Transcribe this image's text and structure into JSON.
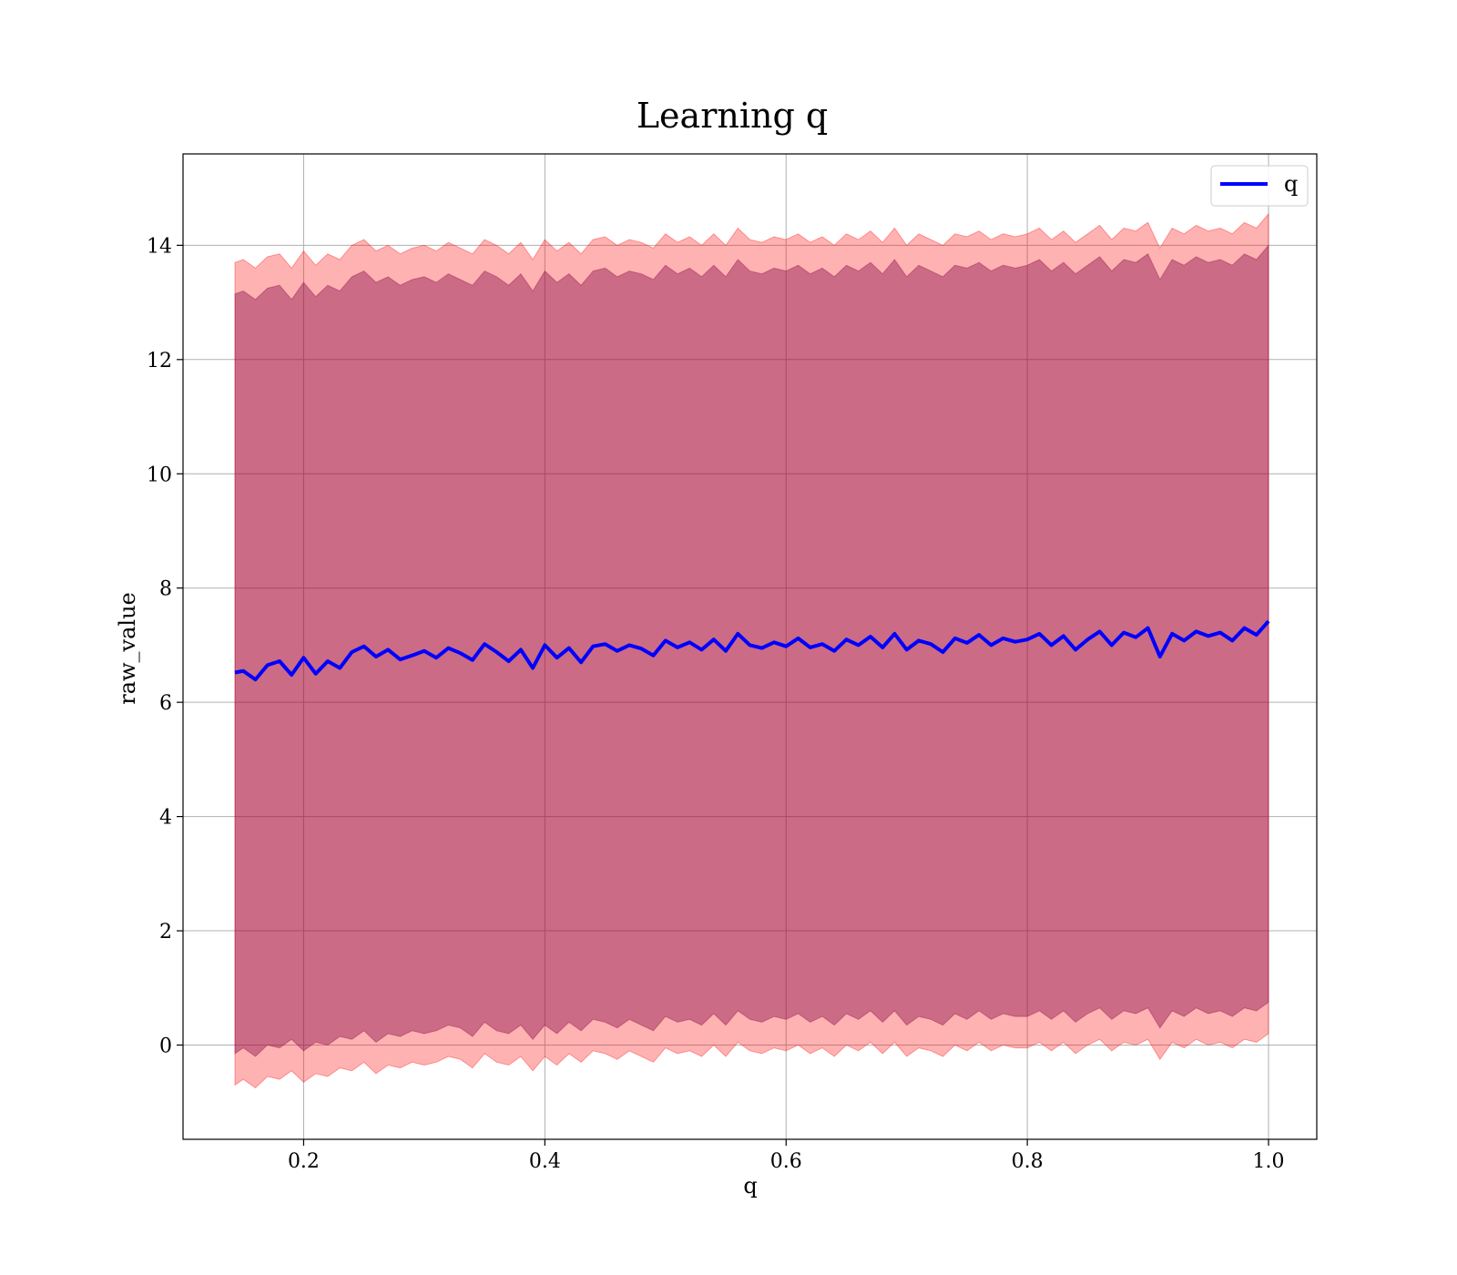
{
  "chart_data": {
    "type": "line",
    "title": "Learning q",
    "xlabel": "q",
    "ylabel": "raw_value",
    "xlim": [
      0.1,
      1.04
    ],
    "ylim": [
      -1.65,
      15.6
    ],
    "xticks": [
      0.2,
      0.4,
      0.6,
      0.8,
      1.0
    ],
    "xtick_labels": [
      "0.2",
      "0.4",
      "0.6",
      "0.8",
      "1.0"
    ],
    "yticks": [
      0,
      2,
      4,
      6,
      8,
      10,
      12,
      14
    ],
    "ytick_labels": [
      "0",
      "2",
      "4",
      "6",
      "8",
      "10",
      "12",
      "14"
    ],
    "grid": true,
    "legend": {
      "position": "top-right",
      "entries": [
        "q"
      ]
    },
    "series": [
      {
        "name": "q",
        "color": "#0000ff",
        "x": [
          0.143,
          0.15,
          0.16,
          0.17,
          0.18,
          0.19,
          0.2,
          0.21,
          0.22,
          0.23,
          0.24,
          0.25,
          0.26,
          0.27,
          0.28,
          0.29,
          0.3,
          0.31,
          0.32,
          0.33,
          0.34,
          0.35,
          0.36,
          0.37,
          0.38,
          0.39,
          0.4,
          0.41,
          0.42,
          0.43,
          0.44,
          0.45,
          0.46,
          0.47,
          0.48,
          0.49,
          0.5,
          0.51,
          0.52,
          0.53,
          0.54,
          0.55,
          0.56,
          0.57,
          0.58,
          0.59,
          0.6,
          0.61,
          0.62,
          0.63,
          0.64,
          0.65,
          0.66,
          0.67,
          0.68,
          0.69,
          0.7,
          0.71,
          0.72,
          0.73,
          0.74,
          0.75,
          0.76,
          0.77,
          0.78,
          0.79,
          0.8,
          0.81,
          0.82,
          0.83,
          0.84,
          0.85,
          0.86,
          0.87,
          0.88,
          0.89,
          0.9,
          0.91,
          0.92,
          0.93,
          0.94,
          0.95,
          0.96,
          0.97,
          0.98,
          0.99,
          1.0
        ],
        "y": [
          6.52,
          6.55,
          6.4,
          6.65,
          6.72,
          6.48,
          6.78,
          6.5,
          6.72,
          6.6,
          6.88,
          6.98,
          6.8,
          6.92,
          6.75,
          6.82,
          6.9,
          6.78,
          6.95,
          6.86,
          6.74,
          7.02,
          6.88,
          6.72,
          6.92,
          6.6,
          7.0,
          6.78,
          6.95,
          6.7,
          6.98,
          7.02,
          6.9,
          7.0,
          6.94,
          6.82,
          7.08,
          6.96,
          7.05,
          6.92,
          7.1,
          6.9,
          7.2,
          7.0,
          6.95,
          7.05,
          6.98,
          7.12,
          6.96,
          7.02,
          6.9,
          7.1,
          7.0,
          7.15,
          6.96,
          7.2,
          6.92,
          7.08,
          7.02,
          6.88,
          7.12,
          7.04,
          7.18,
          7.0,
          7.12,
          7.06,
          7.1,
          7.2,
          7.0,
          7.16,
          6.92,
          7.1,
          7.24,
          7.0,
          7.22,
          7.14,
          7.3,
          6.8,
          7.2,
          7.08,
          7.24,
          7.16,
          7.22,
          7.08,
          7.3,
          7.18,
          7.42
        ],
        "bands": [
          {
            "color": "#ff0000",
            "opacity": 0.3,
            "lower": [
              -0.7,
              -0.6,
              -0.75,
              -0.55,
              -0.6,
              -0.45,
              -0.65,
              -0.5,
              -0.55,
              -0.4,
              -0.45,
              -0.3,
              -0.5,
              -0.35,
              -0.4,
              -0.3,
              -0.35,
              -0.3,
              -0.2,
              -0.25,
              -0.4,
              -0.15,
              -0.3,
              -0.35,
              -0.2,
              -0.45,
              -0.2,
              -0.35,
              -0.15,
              -0.3,
              -0.1,
              -0.15,
              -0.25,
              -0.1,
              -0.2,
              -0.3,
              -0.05,
              -0.15,
              -0.1,
              -0.2,
              0.0,
              -0.2,
              0.05,
              -0.1,
              -0.15,
              -0.05,
              -0.1,
              0.0,
              -0.15,
              -0.05,
              -0.2,
              0.0,
              -0.1,
              0.05,
              -0.15,
              0.05,
              -0.2,
              -0.05,
              -0.1,
              -0.2,
              0.0,
              -0.1,
              0.05,
              -0.1,
              0.0,
              -0.05,
              -0.05,
              0.05,
              -0.1,
              0.05,
              -0.15,
              0.0,
              0.1,
              -0.1,
              0.05,
              0.0,
              0.1,
              -0.25,
              0.05,
              -0.05,
              0.1,
              0.0,
              0.05,
              -0.05,
              0.1,
              0.05,
              0.2
            ],
            "upper": [
              13.7,
              13.75,
              13.6,
              13.8,
              13.85,
              13.6,
              13.9,
              13.65,
              13.85,
              13.75,
              14.0,
              14.1,
              13.9,
              14.0,
              13.85,
              13.95,
              14.0,
              13.9,
              14.05,
              13.95,
              13.85,
              14.1,
              14.0,
              13.85,
              14.05,
              13.75,
              14.1,
              13.9,
              14.05,
              13.85,
              14.1,
              14.15,
              14.0,
              14.1,
              14.05,
              13.95,
              14.2,
              14.05,
              14.15,
              14.0,
              14.2,
              14.0,
              14.3,
              14.1,
              14.05,
              14.15,
              14.1,
              14.2,
              14.05,
              14.15,
              14.0,
              14.2,
              14.1,
              14.25,
              14.05,
              14.3,
              14.0,
              14.2,
              14.1,
              14.0,
              14.2,
              14.15,
              14.25,
              14.1,
              14.2,
              14.15,
              14.2,
              14.3,
              14.1,
              14.25,
              14.05,
              14.2,
              14.35,
              14.1,
              14.3,
              14.25,
              14.4,
              13.95,
              14.3,
              14.2,
              14.35,
              14.25,
              14.3,
              14.2,
              14.4,
              14.3,
              14.55
            ]
          },
          {
            "color": "#800040",
            "opacity": 0.4,
            "lower": [
              -0.15,
              -0.05,
              -0.2,
              0.0,
              -0.05,
              0.1,
              -0.1,
              0.05,
              0.0,
              0.15,
              0.1,
              0.25,
              0.05,
              0.2,
              0.15,
              0.25,
              0.2,
              0.25,
              0.35,
              0.3,
              0.15,
              0.4,
              0.25,
              0.2,
              0.35,
              0.1,
              0.35,
              0.2,
              0.4,
              0.25,
              0.45,
              0.4,
              0.3,
              0.45,
              0.35,
              0.25,
              0.5,
              0.4,
              0.45,
              0.35,
              0.55,
              0.35,
              0.6,
              0.45,
              0.4,
              0.5,
              0.45,
              0.55,
              0.4,
              0.5,
              0.35,
              0.55,
              0.45,
              0.6,
              0.4,
              0.6,
              0.35,
              0.5,
              0.45,
              0.35,
              0.55,
              0.45,
              0.6,
              0.45,
              0.55,
              0.5,
              0.5,
              0.6,
              0.45,
              0.6,
              0.4,
              0.55,
              0.65,
              0.45,
              0.6,
              0.55,
              0.65,
              0.3,
              0.6,
              0.5,
              0.65,
              0.55,
              0.6,
              0.5,
              0.65,
              0.6,
              0.75
            ],
            "upper": [
              13.15,
              13.2,
              13.05,
              13.25,
              13.3,
              13.05,
              13.35,
              13.1,
              13.3,
              13.2,
              13.45,
              13.55,
              13.35,
              13.45,
              13.3,
              13.4,
              13.45,
              13.35,
              13.5,
              13.4,
              13.3,
              13.55,
              13.45,
              13.3,
              13.5,
              13.2,
              13.55,
              13.35,
              13.5,
              13.3,
              13.55,
              13.6,
              13.45,
              13.55,
              13.5,
              13.4,
              13.65,
              13.5,
              13.6,
              13.45,
              13.65,
              13.45,
              13.75,
              13.55,
              13.5,
              13.6,
              13.55,
              13.65,
              13.5,
              13.6,
              13.45,
              13.65,
              13.55,
              13.7,
              13.5,
              13.75,
              13.45,
              13.65,
              13.55,
              13.45,
              13.65,
              13.6,
              13.7,
              13.55,
              13.65,
              13.6,
              13.65,
              13.75,
              13.55,
              13.7,
              13.5,
              13.65,
              13.8,
              13.55,
              13.75,
              13.7,
              13.85,
              13.4,
              13.75,
              13.65,
              13.8,
              13.7,
              13.75,
              13.65,
              13.85,
              13.75,
              14.0
            ]
          }
        ]
      }
    ]
  }
}
